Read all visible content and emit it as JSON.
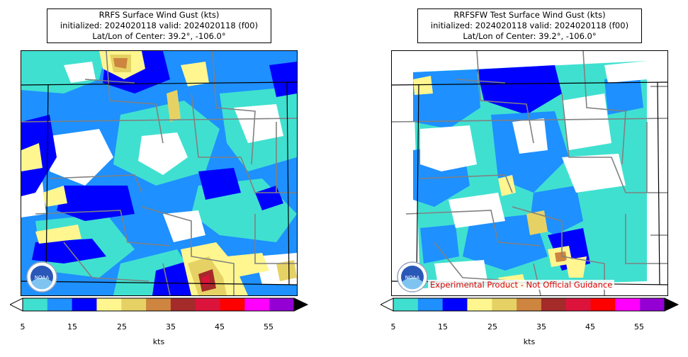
{
  "panels": [
    {
      "id": "rrfs",
      "title_lines": [
        "RRFS Surface Wind Gust (kts)",
        "initialized: 2024020118 valid: 2024020118 (f00)",
        "Lat/Lon of Center: 39.2°, -106.0°"
      ],
      "disclaimer": ""
    },
    {
      "id": "rrfsfw",
      "title_lines": [
        "RRFSFW Test Surface Wind Gust (kts)",
        "initialized: 2024020118 valid: 2024020118 (f00)",
        "Lat/Lon of Center: 39.2°, -106.0°"
      ],
      "disclaimer": "Experimental Product - Not Official Guidance"
    }
  ],
  "colorbar": {
    "colors": [
      "#40e0d0",
      "#1e90ff",
      "#0000ff",
      "#fff68f",
      "#e6d264",
      "#cd853f",
      "#a52a2a",
      "#dc143c",
      "#ff0000",
      "#ff00ff",
      "#9400d3"
    ],
    "tick_labels": [
      "5",
      "15",
      "25",
      "35",
      "45",
      "55"
    ],
    "unit": "kts",
    "over_color": "#000000",
    "under_color": "#ffffff"
  },
  "logo": "noaa-logo",
  "logo_text": "NOAA"
}
